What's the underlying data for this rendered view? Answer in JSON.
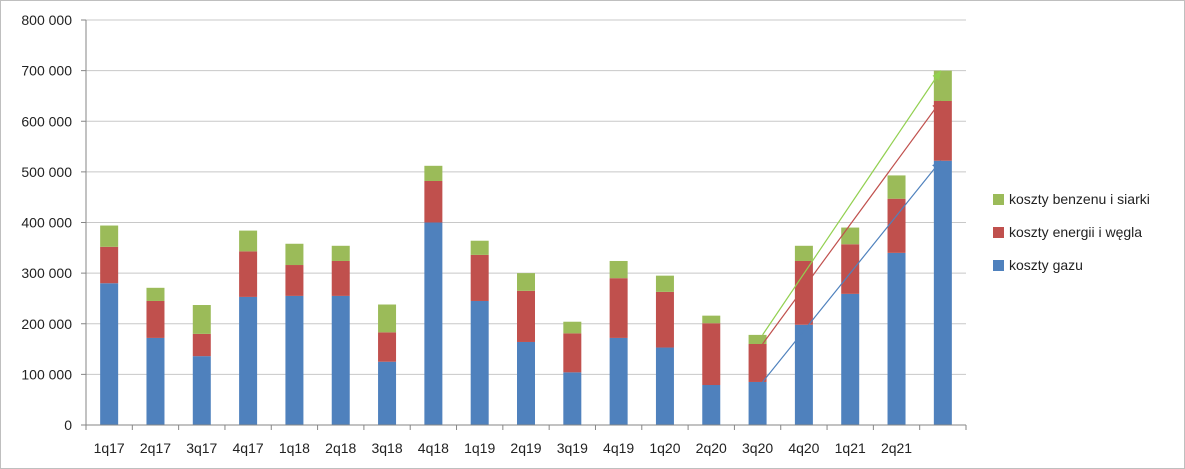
{
  "chart_data": {
    "type": "bar",
    "stacked": true,
    "title": "",
    "xlabel": "",
    "ylabel": "",
    "ylim": [
      0,
      800000
    ],
    "y_ticks": [
      0,
      100000,
      200000,
      300000,
      400000,
      500000,
      600000,
      700000,
      800000
    ],
    "y_tick_labels": [
      "0",
      "100 000",
      "200 000",
      "300 000",
      "400 000",
      "500 000",
      "600 000",
      "700 000",
      "800 000"
    ],
    "grid": true,
    "legend_position": "right",
    "categories": [
      "1q17",
      "2q17",
      "3q17",
      "4q17",
      "1q18",
      "2q18",
      "3q18",
      "4q18",
      "1q19",
      "2q19",
      "3q19",
      "4q19",
      "1q20",
      "2q20",
      "3q20",
      "4q20",
      "1q21",
      "2q21",
      ""
    ],
    "series": [
      {
        "name": "koszty gazu",
        "color": "#4f81bd",
        "values": [
          280000,
          172000,
          136000,
          253000,
          255000,
          255000,
          125000,
          400000,
          245000,
          164000,
          104000,
          172000,
          153000,
          79000,
          85000,
          198000,
          259000,
          340000,
          522000
        ]
      },
      {
        "name": "koszty energii i węgla",
        "color": "#c0504d",
        "values": [
          72000,
          73000,
          44000,
          90000,
          61000,
          69000,
          58000,
          82000,
          91000,
          101000,
          77000,
          118000,
          110000,
          122000,
          75000,
          126000,
          98000,
          107000,
          118000
        ]
      },
      {
        "name": "koszty benzenu i siarki",
        "color": "#9bbb59",
        "values": [
          42000,
          26000,
          57000,
          41000,
          42000,
          30000,
          55000,
          30000,
          28000,
          35000,
          23000,
          34000,
          32000,
          15000,
          18000,
          30000,
          33000,
          46000,
          60000
        ]
      }
    ],
    "trend_arrows": [
      {
        "color": "#4f81bd",
        "from": {
          "x": "3q20",
          "y": 85000
        },
        "to": {
          "x": "",
          "y": 522000
        }
      },
      {
        "color": "#c0504d",
        "from": {
          "x": "3q20",
          "y": 160000
        },
        "to": {
          "x": "",
          "y": 640000
        }
      },
      {
        "color": "#92d050",
        "from": {
          "x": "3q20",
          "y": 178000
        },
        "to": {
          "x": "",
          "y": 700000
        }
      }
    ]
  },
  "legend": {
    "items": [
      {
        "label": "koszty benzenu i siarki",
        "color": "#9bbb59"
      },
      {
        "label": "koszty energii i węgla",
        "color": "#c0504d"
      },
      {
        "label": "koszty gazu",
        "color": "#4f81bd"
      }
    ]
  }
}
